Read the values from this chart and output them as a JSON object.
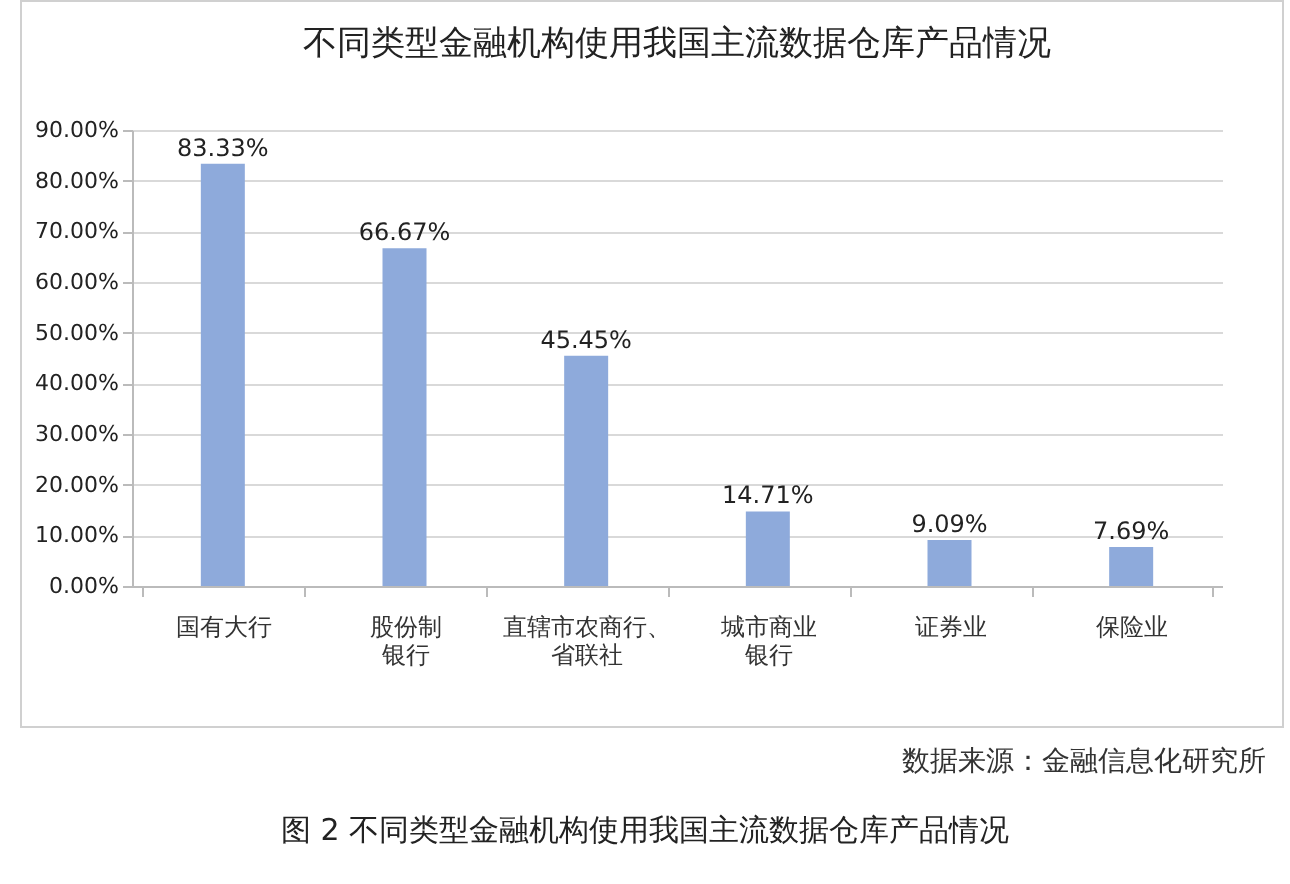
{
  "chart_data": {
    "type": "bar",
    "title": "不同类型金融机构使用我国主流数据仓库产品情况",
    "categories": [
      "国有大行",
      "股份制银行",
      "直辖市农商行、省联社",
      "城市商业银行",
      "证券业",
      "保险业"
    ],
    "values": [
      83.33,
      66.67,
      45.45,
      14.71,
      9.09,
      7.69
    ],
    "value_labels": [
      "83.33%",
      "66.67%",
      "45.45%",
      "14.71%",
      "9.09%",
      "7.69%"
    ],
    "color": "#8eaadb",
    "ylim": [
      0,
      90
    ],
    "yticks": [
      {
        "value": 0,
        "label": "0.00%"
      },
      {
        "value": 10,
        "label": "10.00%"
      },
      {
        "value": 20,
        "label": "20.00%"
      },
      {
        "value": 30,
        "label": "30.00%"
      },
      {
        "value": 40,
        "label": "40.00%"
      },
      {
        "value": 50,
        "label": "50.00%"
      },
      {
        "value": 60,
        "label": "60.00%"
      },
      {
        "value": 70,
        "label": "70.00%"
      },
      {
        "value": 80,
        "label": "80.00%"
      },
      {
        "value": 90,
        "label": "90.00%"
      }
    ],
    "grid": "y",
    "annotations": [
      "数据来源：金融信息化研究所",
      "图 2 不同类型金融机构使用我国主流数据仓库产品情况"
    ]
  }
}
